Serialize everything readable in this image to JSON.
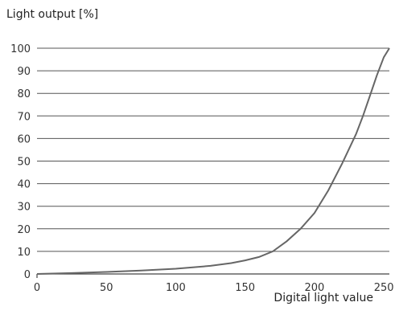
{
  "chart_data": {
    "type": "line",
    "title": "",
    "ylabel": "Light output [%]",
    "xlabel": "Digital light value",
    "xlim": [
      0,
      254
    ],
    "ylim": [
      0,
      100
    ],
    "x_ticks": [
      0,
      50,
      100,
      150,
      200,
      250
    ],
    "y_ticks": [
      0,
      10,
      20,
      30,
      40,
      50,
      60,
      70,
      80,
      90,
      100
    ],
    "grid": "horizontal",
    "legend": "none",
    "series": [
      {
        "x": [
          0,
          25,
          50,
          75,
          100,
          125,
          140,
          150,
          160,
          170,
          180,
          190,
          200,
          210,
          220,
          230,
          235,
          240,
          245,
          250,
          254
        ],
        "y": [
          0,
          0.4,
          0.9,
          1.5,
          2.3,
          3.6,
          4.8,
          6,
          7.5,
          10,
          14.5,
          20,
          27,
          37,
          49,
          62,
          70,
          79,
          88,
          96,
          100
        ]
      }
    ]
  }
}
